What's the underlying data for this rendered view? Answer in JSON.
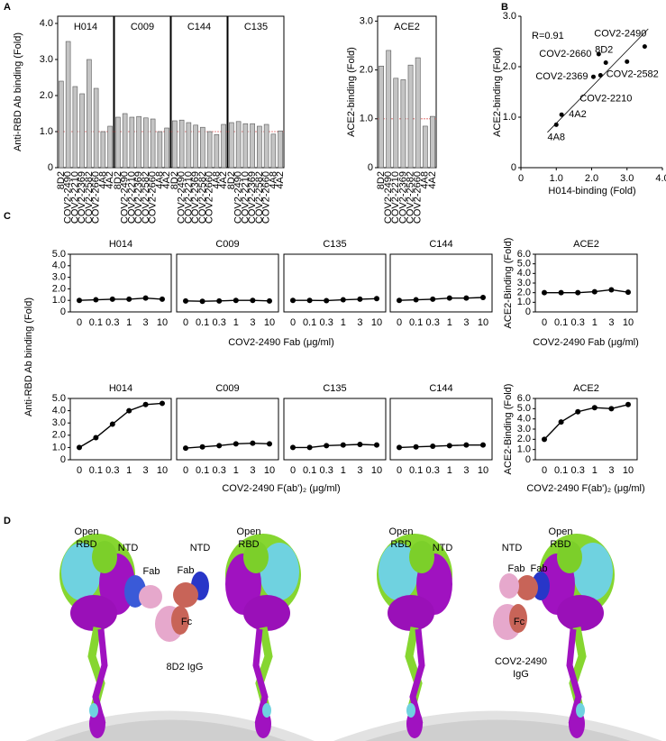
{
  "panel_labels": [
    "A",
    "B",
    "C",
    "D"
  ],
  "chart_data": [
    {
      "type": "bar",
      "title": "H014",
      "ylabel": "Anti-RBD Ab binding (Fold)",
      "categories": [
        "8D2",
        "COV2-2490",
        "COV2-2210",
        "COV2-2369",
        "COV2-2582",
        "COV2-2660",
        "4A8",
        "4A2"
      ],
      "values": [
        2.4,
        3.5,
        2.25,
        2.05,
        3.0,
        2.2,
        1.0,
        1.15
      ],
      "color": "#c4c4c4",
      "ylim": [
        0,
        4.2
      ],
      "yticks": [
        0,
        {
          "value": 1,
          "label": "1.0"
        },
        {
          "value": 2,
          "label": "2.0"
        },
        {
          "value": 3,
          "label": "3.0"
        },
        {
          "value": 4,
          "label": "4.0"
        }
      ],
      "reference_line": 1,
      "reference_color": "#e06060"
    },
    {
      "type": "bar",
      "title": "C009",
      "categories": [
        "8D2",
        "COV2-2490",
        "COV2-2210",
        "COV2-2369",
        "COV2-2582",
        "COV2-2660",
        "4A8",
        "4A2"
      ],
      "values": [
        1.4,
        1.5,
        1.4,
        1.42,
        1.38,
        1.35,
        1.0,
        1.1
      ],
      "color": "#c4c4c4",
      "ylim": [
        0,
        4.2
      ],
      "reference_line": 1,
      "reference_color": "#e06060"
    },
    {
      "type": "bar",
      "title": "C144",
      "categories": [
        "8D2",
        "COV2-2490",
        "COV2-2210",
        "COV2-2369",
        "COV2-2582",
        "COV2-2660",
        "4A8",
        "4A2"
      ],
      "values": [
        1.3,
        1.32,
        1.25,
        1.18,
        1.12,
        1.0,
        0.92,
        1.2
      ],
      "color": "#c4c4c4",
      "ylim": [
        0,
        4.2
      ],
      "reference_line": 1,
      "reference_color": "#e06060"
    },
    {
      "type": "bar",
      "title": "C135",
      "categories": [
        "8D2",
        "COV2-2490",
        "COV2-2210",
        "COV2-2369",
        "COV2-2582",
        "COV2-2660",
        "4A8",
        "4A2"
      ],
      "values": [
        1.25,
        1.28,
        1.22,
        1.22,
        1.15,
        1.2,
        0.93,
        1.02
      ],
      "color": "#c4c4c4",
      "ylim": [
        0,
        4.2
      ],
      "reference_line": 1,
      "reference_color": "#e06060"
    },
    {
      "type": "bar",
      "title": "ACE2",
      "ylabel": "ACE2-binding (Fold)",
      "categories": [
        "8D2",
        "COV2-2490",
        "COV2-2210",
        "COV2-2369",
        "COV2-2582",
        "COV2-2660",
        "4A8",
        "4A2"
      ],
      "values": [
        2.08,
        2.4,
        1.83,
        1.8,
        2.1,
        2.25,
        0.85,
        1.05
      ],
      "color": "#c4c4c4",
      "ylim": [
        0,
        3.1
      ],
      "yticks": [
        0,
        {
          "value": 1,
          "label": "1.0"
        },
        {
          "value": 2,
          "label": "2.0"
        },
        {
          "value": 3,
          "label": "3.0"
        }
      ],
      "reference_line": 1,
      "reference_color": "#e06060"
    },
    {
      "type": "scatter",
      "xlabel": "H014-binding (Fold)",
      "ylabel": "ACE2-binding (Fold)",
      "annotation": "R=0.91",
      "labels": [
        "8D2",
        "COV2-2490",
        "COV2-2210",
        "COV2-2369",
        "COV2-2582",
        "COV2-2660",
        "4A8",
        "4A2"
      ],
      "x": [
        2.4,
        3.5,
        2.25,
        2.05,
        3.0,
        2.2,
        1.0,
        1.15
      ],
      "y": [
        2.08,
        2.4,
        1.83,
        1.8,
        2.1,
        2.25,
        0.85,
        1.05
      ],
      "color": "#000000",
      "xlim": [
        0,
        4
      ],
      "ylim": [
        0,
        3
      ],
      "xticks": [
        0,
        {
          "value": 1,
          "label": "1.0"
        },
        {
          "value": 2,
          "label": "2.0"
        },
        {
          "value": 3,
          "label": "3.0"
        },
        {
          "value": 4,
          "label": "4.0"
        }
      ],
      "yticks": [
        0,
        {
          "value": 1,
          "label": "1.0"
        },
        {
          "value": 2,
          "label": "2.0"
        },
        {
          "value": 3,
          "label": "3.0"
        }
      ],
      "trendline": {
        "x": [
          0.75,
          3.6
        ],
        "y": [
          0.7,
          2.75
        ]
      }
    },
    {
      "type": "line",
      "title": "H014",
      "xlabel": "COV2-2490 Fab (μg/ml)",
      "ylabel": "Anti-RBD Ab binding (Fold)",
      "categories": [
        "0",
        "0.1",
        "0.3",
        "1",
        "3",
        "10"
      ],
      "values": [
        1.0,
        1.05,
        1.1,
        1.1,
        1.2,
        1.1
      ],
      "color": "#000000",
      "ylim": [
        0,
        5
      ],
      "yticks": [
        0,
        {
          "value": 1,
          "label": "1.0"
        },
        {
          "value": 2,
          "label": "2.0"
        },
        {
          "value": 3,
          "label": "3.0"
        },
        {
          "value": 4,
          "label": "4.0"
        },
        {
          "value": 5,
          "label": "5.0"
        }
      ]
    },
    {
      "type": "line",
      "title": "C009",
      "categories": [
        "0",
        "0.1",
        "0.3",
        "1",
        "3",
        "10"
      ],
      "values": [
        0.95,
        0.92,
        0.95,
        1.0,
        1.0,
        0.95
      ],
      "color": "#000000",
      "ylim": [
        0,
        5
      ]
    },
    {
      "type": "line",
      "title": "C135",
      "categories": [
        "0",
        "0.1",
        "0.3",
        "1",
        "3",
        "10"
      ],
      "values": [
        1.0,
        1.0,
        0.98,
        1.05,
        1.1,
        1.15
      ],
      "color": "#000000",
      "ylim": [
        0,
        5
      ]
    },
    {
      "type": "line",
      "title": "C144",
      "categories": [
        "0",
        "0.1",
        "0.3",
        "1",
        "3",
        "10"
      ],
      "values": [
        1.0,
        1.05,
        1.1,
        1.2,
        1.2,
        1.25
      ],
      "color": "#000000",
      "ylim": [
        0,
        5
      ]
    },
    {
      "type": "line",
      "title": "ACE2",
      "xlabel": "COV2-2490 Fab (μg/ml)",
      "ylabel": "ACE2-Binding (Fold)",
      "categories": [
        "0",
        "0.1",
        "0.3",
        "1",
        "3",
        "10"
      ],
      "values": [
        2.0,
        2.0,
        2.0,
        2.1,
        2.3,
        2.05
      ],
      "color": "#000000",
      "ylim": [
        0,
        6
      ],
      "yticks": [
        0,
        {
          "value": 1,
          "label": "1.0"
        },
        {
          "value": 2,
          "label": "2.0"
        },
        {
          "value": 3,
          "label": "3.0"
        },
        {
          "value": 4,
          "label": "4.0"
        },
        {
          "value": 5,
          "label": "5.0"
        },
        {
          "value": 6,
          "label": "6.0"
        }
      ]
    },
    {
      "type": "line",
      "title": "H014",
      "xlabel": "COV2-2490 F(ab')₂ (μg/ml)",
      "categories": [
        "0",
        "0.1",
        "0.3",
        "1",
        "3",
        "10"
      ],
      "values": [
        1.0,
        1.8,
        2.9,
        4.0,
        4.5,
        4.6
      ],
      "color": "#000000",
      "ylim": [
        0,
        5
      ],
      "yticks": [
        0,
        {
          "value": 1,
          "label": "1.0"
        },
        {
          "value": 2,
          "label": "2.0"
        },
        {
          "value": 3,
          "label": "3.0"
        },
        {
          "value": 4,
          "label": "4.0"
        },
        {
          "value": 5,
          "label": "5.0"
        }
      ]
    },
    {
      "type": "line",
      "title": "C009",
      "categories": [
        "0",
        "0.1",
        "0.3",
        "1",
        "3",
        "10"
      ],
      "values": [
        0.95,
        1.05,
        1.15,
        1.3,
        1.35,
        1.3
      ],
      "color": "#000000",
      "ylim": [
        0,
        5
      ]
    },
    {
      "type": "line",
      "title": "C135",
      "categories": [
        "0",
        "0.1",
        "0.3",
        "1",
        "3",
        "10"
      ],
      "values": [
        1.0,
        1.0,
        1.15,
        1.2,
        1.25,
        1.2
      ],
      "color": "#000000",
      "ylim": [
        0,
        5
      ]
    },
    {
      "type": "line",
      "title": "C144",
      "categories": [
        "0",
        "0.1",
        "0.3",
        "1",
        "3",
        "10"
      ],
      "values": [
        1.0,
        1.05,
        1.1,
        1.15,
        1.2,
        1.2
      ],
      "color": "#000000",
      "ylim": [
        0,
        5
      ]
    },
    {
      "type": "line",
      "title": "ACE2",
      "xlabel": "COV2-2490 F(ab')₂ (μg/ml)",
      "ylabel": "ACE2-Binding (Fold)",
      "categories": [
        "0",
        "0.1",
        "0.3",
        "1",
        "3",
        "10"
      ],
      "values": [
        2.0,
        3.7,
        4.7,
        5.1,
        5.0,
        5.4
      ],
      "color": "#000000",
      "ylim": [
        0,
        6
      ],
      "yticks": [
        0,
        {
          "value": 1,
          "label": "1.0"
        },
        {
          "value": 2,
          "label": "2.0"
        },
        {
          "value": 3,
          "label": "3.0"
        },
        {
          "value": 4,
          "label": "4.0"
        },
        {
          "value": 5,
          "label": "5.0"
        },
        {
          "value": 6,
          "label": "6.0"
        }
      ]
    }
  ],
  "illustration": {
    "panels": [
      {
        "labels": [
          [
            "Open",
            "RBD"
          ],
          [
            "NTD"
          ],
          [
            "NTD"
          ],
          [
            "Open",
            "RBD"
          ],
          [
            "Fab"
          ],
          [
            "Fab"
          ],
          [
            "Fc"
          ],
          [
            "8D2 IgG"
          ]
        ]
      },
      {
        "labels": [
          [
            "Open",
            "RBD"
          ],
          [
            "NTD"
          ],
          [
            "NTD"
          ],
          [
            "Open",
            "RBD"
          ],
          [
            "Fab"
          ],
          [
            "Fab"
          ],
          [
            "Fc"
          ],
          [
            "COV2-2490",
            "IgG"
          ]
        ]
      }
    ]
  }
}
